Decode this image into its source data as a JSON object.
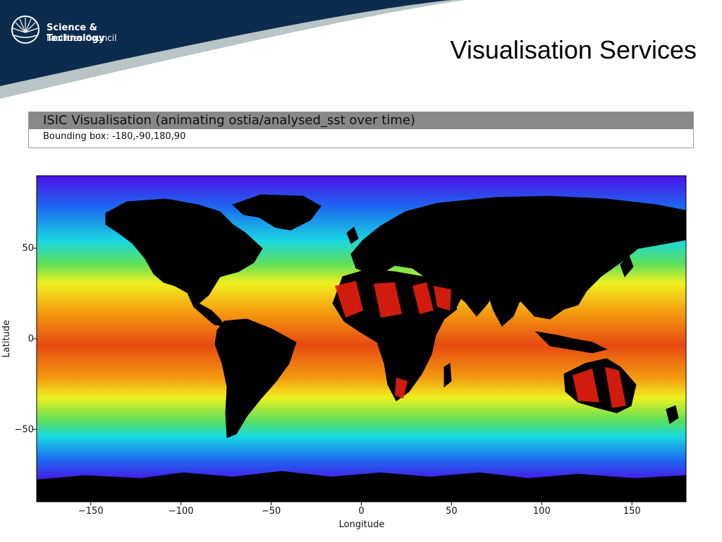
{
  "slide": {
    "title": "Visualisation Services",
    "logo": {
      "line1": "Science & Technology",
      "line2": "Facilities Council"
    }
  },
  "panel": {
    "title": "ISIC Visualisation (animating ostia/analysed_sst over time)",
    "bounding_box": "Bounding box: -180,-90,180,90"
  },
  "chart_data": {
    "type": "heatmap",
    "title": "",
    "xlabel": "Longitude",
    "ylabel": "Latitude",
    "xlim": [
      -180,
      180
    ],
    "ylim": [
      -90,
      90
    ],
    "x_ticks": [
      -150,
      -100,
      -50,
      0,
      50,
      100,
      150
    ],
    "y_ticks": [
      50,
      0,
      -50
    ],
    "x_tick_labels": [
      "−150",
      "−100",
      "−50",
      "0",
      "50",
      "100",
      "150"
    ],
    "y_tick_labels": [
      "50",
      "0",
      "−50"
    ],
    "colors": {
      "polar": "#4a10e8",
      "cold": "#1c6cf0",
      "cool": "#19d8e0",
      "mild": "#5ee05a",
      "warm": "#f0f01e",
      "hot": "#f49a10",
      "hottest": "#e64a10",
      "land": "#ffffff",
      "land_hot": "#e81e10"
    }
  }
}
